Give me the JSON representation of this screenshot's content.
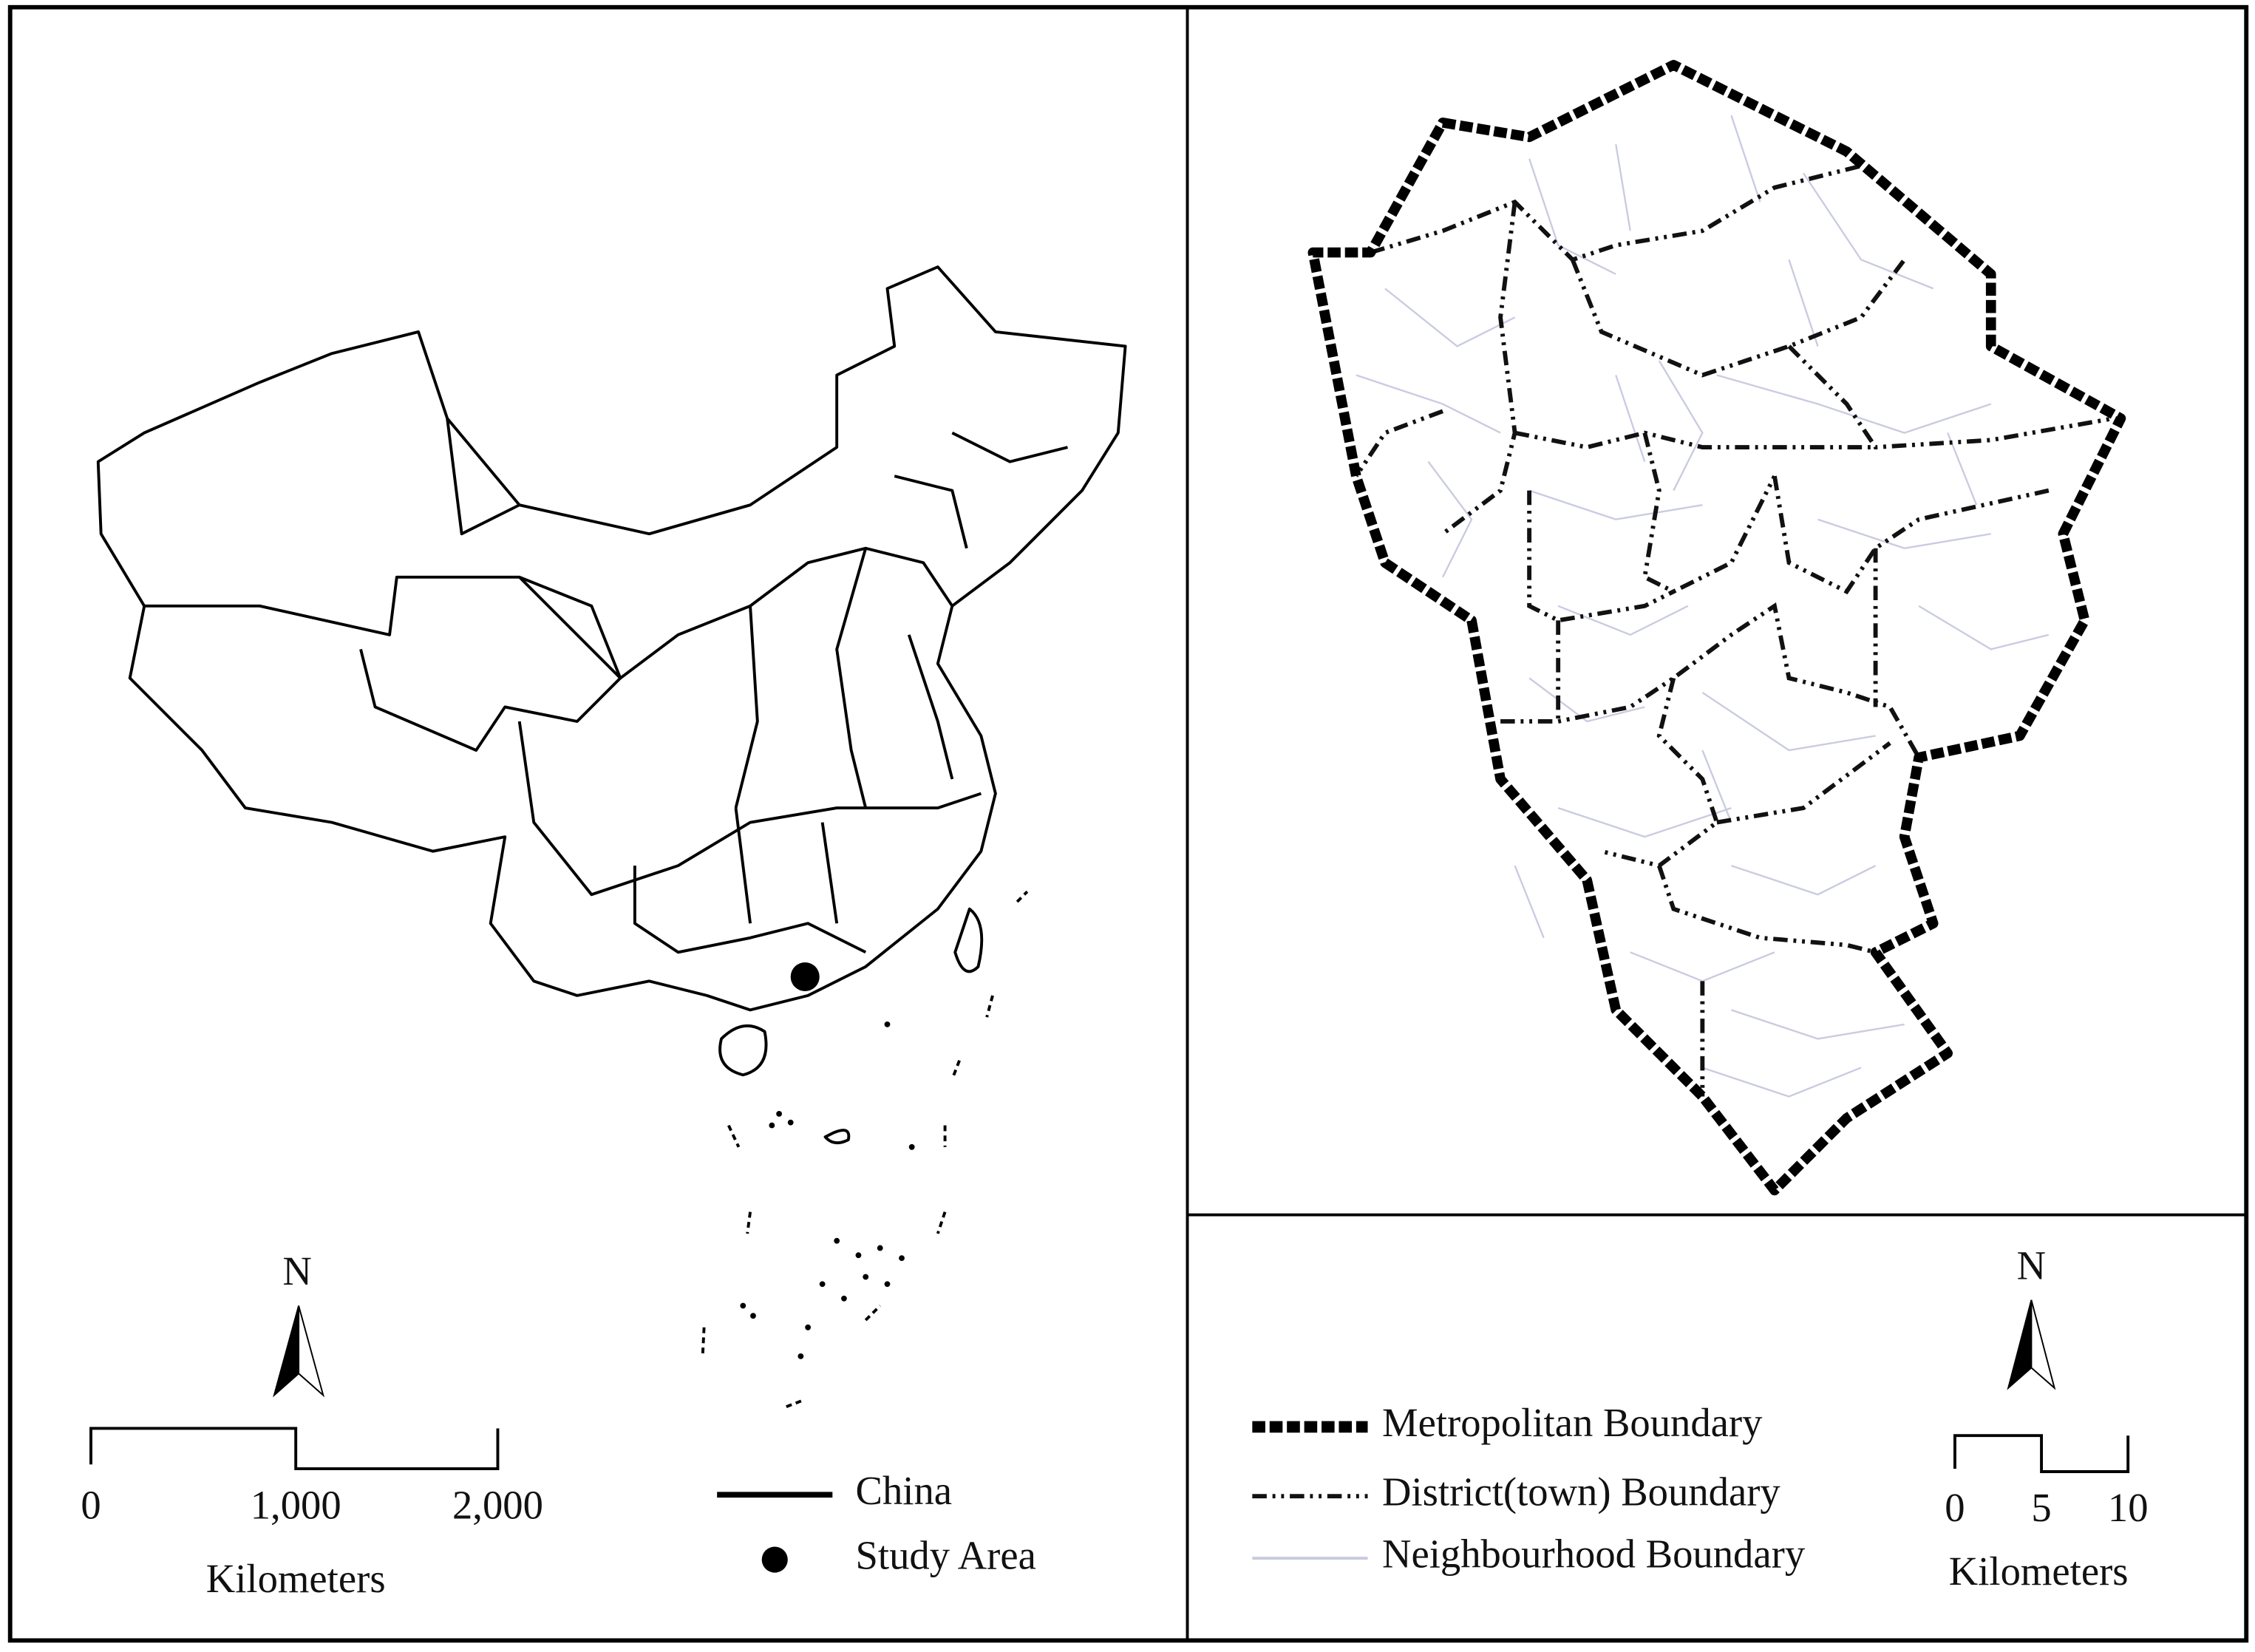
{
  "left_panel": {
    "north_label": "N",
    "scale_labels": [
      "0",
      "1,000",
      "2,000"
    ],
    "scale_unit": "Kilometers",
    "legend": [
      {
        "label": "China"
      },
      {
        "label": "Study Area"
      }
    ]
  },
  "right_panel": {
    "north_label": "N",
    "scale_labels": [
      "0",
      "5",
      "10"
    ],
    "scale_unit": "Kilometers",
    "legend": [
      {
        "label": "Metropolitan Boundary"
      },
      {
        "label": "District(town) Boundary"
      },
      {
        "label": "Neighbourhood Boundary"
      }
    ]
  }
}
